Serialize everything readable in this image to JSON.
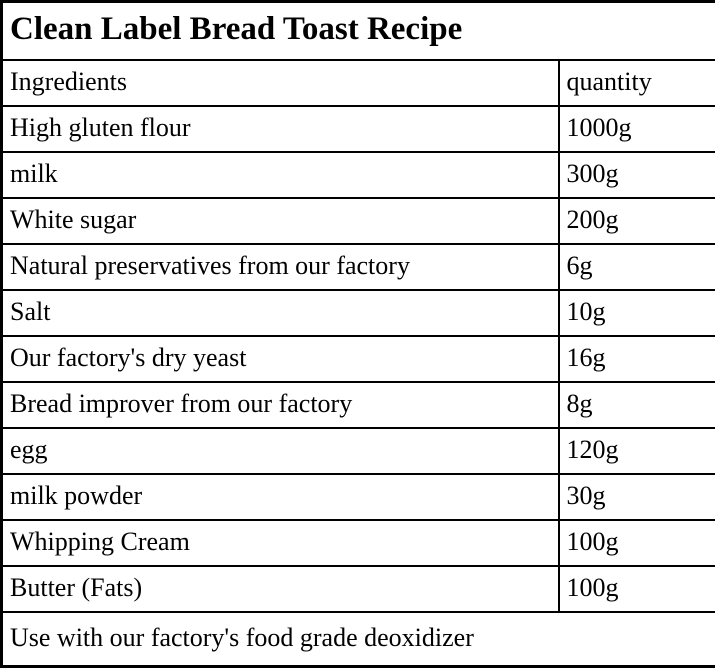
{
  "table": {
    "title": "Clean Label Bread Toast Recipe",
    "columns": [
      "Ingredients",
      "quantity"
    ],
    "rows": [
      [
        "High gluten flour",
        "1000g"
      ],
      [
        "milk",
        "300g"
      ],
      [
        "White sugar",
        "200g"
      ],
      [
        "Natural preservatives from our factory",
        "6g"
      ],
      [
        "Salt",
        "10g"
      ],
      [
        "Our factory's dry yeast",
        "16g"
      ],
      [
        "Bread improver from our factory",
        "8g"
      ],
      [
        "egg",
        "120g"
      ],
      [
        "milk powder",
        "30g"
      ],
      [
        "Whipping Cream",
        "100g"
      ],
      [
        "Butter (Fats)",
        "100g"
      ]
    ],
    "footer": "Use with our factory's food grade deoxidizer",
    "colors": {
      "text": "#000000",
      "border": "#000000",
      "background": "#ffffff"
    }
  }
}
